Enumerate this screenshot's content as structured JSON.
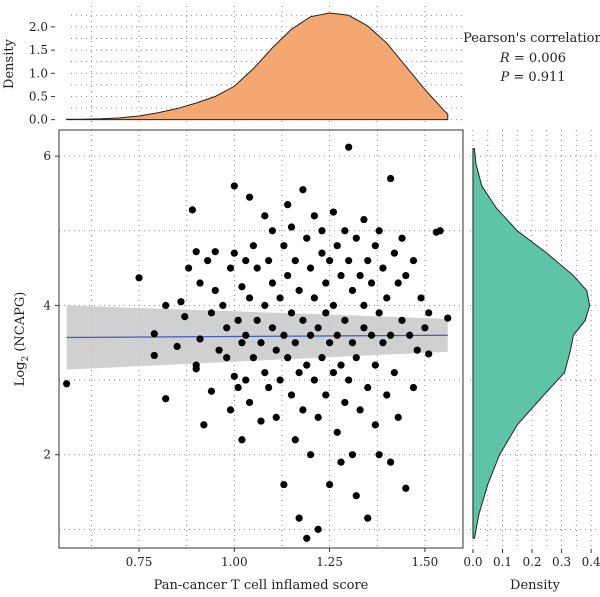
{
  "chart_data": {
    "type": "scatter",
    "xlabel": "Pan-cancer T cell inflamed score",
    "ylabel_main": "Log",
    "ylabel_sub": "2",
    "ylabel_rest": " (NCAPG)",
    "xlim": [
      0.54,
      1.6
    ],
    "ylim": [
      0.75,
      6.35
    ],
    "xticks": [
      "0.75",
      "1.00",
      "1.25",
      "1.50"
    ],
    "xtick_values": [
      0.75,
      1.0,
      1.25,
      1.5
    ],
    "yticks": [
      "2",
      "4",
      "6"
    ],
    "ytick_values": [
      2,
      4,
      6
    ],
    "grid": true,
    "points": [
      [
        0.56,
        2.95
      ],
      [
        0.75,
        4.37
      ],
      [
        0.79,
        3.33
      ],
      [
        0.79,
        3.62
      ],
      [
        0.82,
        2.75
      ],
      [
        0.82,
        4.0
      ],
      [
        0.85,
        3.45
      ],
      [
        0.86,
        4.05
      ],
      [
        0.87,
        3.85
      ],
      [
        0.88,
        4.5
      ],
      [
        0.89,
        5.28
      ],
      [
        0.9,
        4.72
      ],
      [
        0.9,
        3.2
      ],
      [
        0.9,
        3.15
      ],
      [
        0.91,
        3.55
      ],
      [
        0.91,
        4.3
      ],
      [
        0.92,
        2.4
      ],
      [
        0.93,
        4.6
      ],
      [
        0.94,
        3.9
      ],
      [
        0.94,
        2.85
      ],
      [
        0.95,
        4.2
      ],
      [
        0.95,
        4.72
      ],
      [
        0.96,
        3.4
      ],
      [
        0.97,
        4.0
      ],
      [
        0.98,
        3.7
      ],
      [
        0.98,
        3.3
      ],
      [
        0.99,
        4.5
      ],
      [
        0.99,
        2.6
      ],
      [
        1.0,
        5.6
      ],
      [
        1.0,
        4.7
      ],
      [
        1.0,
        3.05
      ],
      [
        1.01,
        3.8
      ],
      [
        1.01,
        2.9
      ],
      [
        1.02,
        4.25
      ],
      [
        1.02,
        3.5
      ],
      [
        1.02,
        2.2
      ],
      [
        1.03,
        4.6
      ],
      [
        1.03,
        3.6
      ],
      [
        1.03,
        3.0
      ],
      [
        1.04,
        5.45
      ],
      [
        1.04,
        4.1
      ],
      [
        1.04,
        2.7
      ],
      [
        1.05,
        4.8
      ],
      [
        1.05,
        3.3
      ],
      [
        1.06,
        3.8
      ],
      [
        1.06,
        4.5
      ],
      [
        1.07,
        2.45
      ],
      [
        1.07,
        3.5
      ],
      [
        1.08,
        4.0
      ],
      [
        1.08,
        5.2
      ],
      [
        1.08,
        3.1
      ],
      [
        1.09,
        4.6
      ],
      [
        1.09,
        2.9
      ],
      [
        1.1,
        3.7
      ],
      [
        1.1,
        4.3
      ],
      [
        1.1,
        5.0
      ],
      [
        1.11,
        3.4
      ],
      [
        1.11,
        2.5
      ],
      [
        1.12,
        4.1
      ],
      [
        1.12,
        3.0
      ],
      [
        1.13,
        4.8
      ],
      [
        1.13,
        3.6
      ],
      [
        1.13,
        1.6
      ],
      [
        1.14,
        5.35
      ],
      [
        1.14,
        4.4
      ],
      [
        1.14,
        3.3
      ],
      [
        1.15,
        2.8
      ],
      [
        1.15,
        3.9
      ],
      [
        1.15,
        5.05
      ],
      [
        1.16,
        4.6
      ],
      [
        1.16,
        3.5
      ],
      [
        1.16,
        2.2
      ],
      [
        1.17,
        1.15
      ],
      [
        1.17,
        3.1
      ],
      [
        1.17,
        4.2
      ],
      [
        1.18,
        5.55
      ],
      [
        1.18,
        3.8
      ],
      [
        1.18,
        2.6
      ],
      [
        1.19,
        0.88
      ],
      [
        1.19,
        4.9
      ],
      [
        1.19,
        3.2
      ],
      [
        1.2,
        4.5
      ],
      [
        1.2,
        3.6
      ],
      [
        1.2,
        2.0
      ],
      [
        1.21,
        5.2
      ],
      [
        1.21,
        3.0
      ],
      [
        1.21,
        4.1
      ],
      [
        1.22,
        1.0
      ],
      [
        1.22,
        3.7
      ],
      [
        1.22,
        2.5
      ],
      [
        1.23,
        4.7
      ],
      [
        1.23,
        3.3
      ],
      [
        1.23,
        5.0
      ],
      [
        1.24,
        4.3
      ],
      [
        1.24,
        2.8
      ],
      [
        1.24,
        3.9
      ],
      [
        1.25,
        1.6
      ],
      [
        1.25,
        4.6
      ],
      [
        1.25,
        3.5
      ],
      [
        1.26,
        5.25
      ],
      [
        1.26,
        3.1
      ],
      [
        1.26,
        4.0
      ],
      [
        1.27,
        2.3
      ],
      [
        1.27,
        4.8
      ],
      [
        1.27,
        3.6
      ],
      [
        1.28,
        1.9
      ],
      [
        1.28,
        4.4
      ],
      [
        1.28,
        3.2
      ],
      [
        1.29,
        5.0
      ],
      [
        1.29,
        2.7
      ],
      [
        1.29,
        3.8
      ],
      [
        1.3,
        6.12
      ],
      [
        1.3,
        4.6
      ],
      [
        1.3,
        3.0
      ],
      [
        1.31,
        4.2
      ],
      [
        1.31,
        2.0
      ],
      [
        1.31,
        3.5
      ],
      [
        1.32,
        4.9
      ],
      [
        1.32,
        1.45
      ],
      [
        1.32,
        3.3
      ],
      [
        1.33,
        4.4
      ],
      [
        1.33,
        2.6
      ],
      [
        1.34,
        5.15
      ],
      [
        1.34,
        3.7
      ],
      [
        1.34,
        4.0
      ],
      [
        1.35,
        1.15
      ],
      [
        1.35,
        4.6
      ],
      [
        1.35,
        2.9
      ],
      [
        1.36,
        3.6
      ],
      [
        1.36,
        4.3
      ],
      [
        1.37,
        2.4
      ],
      [
        1.37,
        4.8
      ],
      [
        1.37,
        3.2
      ],
      [
        1.38,
        5.0
      ],
      [
        1.38,
        3.9
      ],
      [
        1.38,
        2.0
      ],
      [
        1.39,
        4.5
      ],
      [
        1.39,
        3.5
      ],
      [
        1.4,
        2.8
      ],
      [
        1.4,
        4.1
      ],
      [
        1.41,
        5.7
      ],
      [
        1.41,
        3.6
      ],
      [
        1.41,
        1.9
      ],
      [
        1.42,
        4.7
      ],
      [
        1.42,
        3.1
      ],
      [
        1.43,
        4.3
      ],
      [
        1.43,
        2.5
      ],
      [
        1.44,
        4.9
      ],
      [
        1.44,
        3.8
      ],
      [
        1.45,
        1.55
      ],
      [
        1.45,
        4.4
      ],
      [
        1.46,
        3.6
      ],
      [
        1.47,
        2.9
      ],
      [
        1.47,
        4.6
      ],
      [
        1.48,
        3.4
      ],
      [
        1.49,
        4.1
      ],
      [
        1.5,
        3.7
      ],
      [
        1.51,
        3.9
      ],
      [
        1.51,
        3.35
      ],
      [
        1.53,
        4.98
      ],
      [
        1.54,
        5.0
      ],
      [
        1.56,
        3.83
      ]
    ],
    "fit": {
      "x": [
        0.56,
        1.56
      ],
      "y": [
        3.57,
        3.6
      ],
      "ci_upper": [
        4.0,
        3.82
      ],
      "ci_lower": [
        3.14,
        3.38
      ]
    },
    "top_density": {
      "ylabel": "Density",
      "yticks": [
        "0.0",
        "0.5",
        "1.0",
        "1.5",
        "2.0"
      ],
      "ytick_values": [
        0,
        0.5,
        1.0,
        1.5,
        2.0
      ],
      "ylim": [
        -0.05,
        2.45
      ],
      "x": [
        0.56,
        0.6,
        0.65,
        0.7,
        0.75,
        0.8,
        0.85,
        0.9,
        0.95,
        1.0,
        1.05,
        1.1,
        1.15,
        1.2,
        1.25,
        1.3,
        1.35,
        1.4,
        1.45,
        1.5,
        1.55,
        1.56
      ],
      "y": [
        0.01,
        0.01,
        0.02,
        0.04,
        0.08,
        0.15,
        0.24,
        0.36,
        0.5,
        0.72,
        1.1,
        1.55,
        1.95,
        2.22,
        2.3,
        2.25,
        2.02,
        1.65,
        1.15,
        0.65,
        0.2,
        0.12
      ],
      "color": "#f2a870"
    },
    "right_density": {
      "xlabel": "Density",
      "xticks": [
        "0.0",
        "0.1",
        "0.2",
        "0.3",
        "0.4"
      ],
      "xtick_values": [
        0.0,
        0.1,
        0.2,
        0.3,
        0.4
      ],
      "xlim": [
        -0.01,
        0.43
      ],
      "y": [
        0.88,
        1.2,
        1.6,
        2.0,
        2.4,
        2.8,
        3.1,
        3.4,
        3.6,
        3.8,
        4.0,
        4.2,
        4.4,
        4.7,
        5.0,
        5.3,
        5.6,
        5.9,
        6.1
      ],
      "x": [
        0.005,
        0.02,
        0.05,
        0.09,
        0.15,
        0.24,
        0.31,
        0.33,
        0.34,
        0.38,
        0.395,
        0.385,
        0.34,
        0.25,
        0.15,
        0.08,
        0.03,
        0.01,
        0.005
      ],
      "color": "#5ec4a7"
    },
    "annotation": {
      "title": "Pearson's correlation",
      "r_label": "R",
      "r_value": " = 0.006",
      "p_label": "P",
      "p_value": " = 0.911"
    },
    "colors": {
      "points": "#000000",
      "fit_line": "#3a5fc8",
      "ci_band": "#c8c8c8"
    }
  }
}
